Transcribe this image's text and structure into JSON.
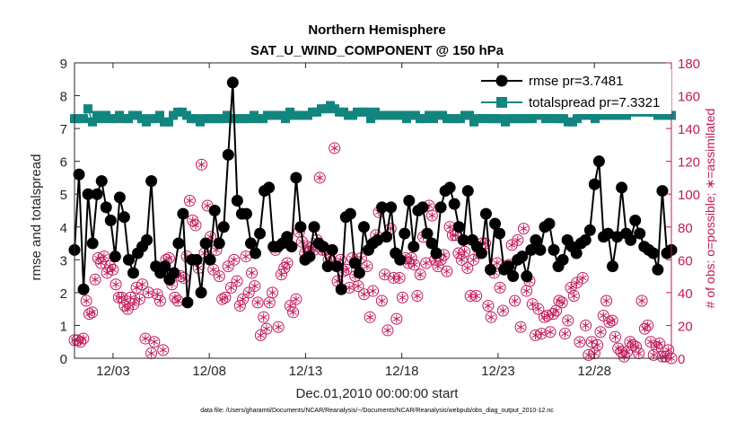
{
  "chart_data": {
    "type": "line",
    "title": "Northern Hemisphere",
    "subtitle": "SAT_U_WIND_COMPONENT @ 150 hPa",
    "xlabel": "Dec.01,2010 00:00:00 start",
    "ylabel": "rmse and totalspread",
    "ylabel_right": "# of obs: o=possible; ∗=assimilated",
    "xlim": [
      1,
      32
    ],
    "ylim": [
      0,
      9
    ],
    "ylim_right": [
      0,
      180
    ],
    "x_ticks": [
      3,
      8,
      13,
      18,
      23,
      28
    ],
    "x_tick_labels": [
      "12/03",
      "12/08",
      "12/13",
      "12/18",
      "12/23",
      "12/28"
    ],
    "y_ticks": [
      0,
      1,
      2,
      3,
      4,
      5,
      6,
      7,
      8,
      9
    ],
    "y_right_ticks": [
      0,
      20,
      40,
      60,
      80,
      100,
      120,
      140,
      160,
      180
    ],
    "footnote": "data file: /Users/gharamti/Documents/NCAR/Reanalysis/~/Documents/NCAR/Reanalysis/webpub/obs_diag_output_2010-12.nc",
    "series": [
      {
        "name": "rmse pr=3.7481",
        "color": "#000000",
        "marker": "circle",
        "values": [
          3.3,
          5.6,
          2.1,
          5.0,
          3.5,
          5.0,
          5.4,
          4.6,
          4.2,
          3.1,
          4.9,
          4.3,
          3.0,
          2.6,
          3.2,
          3.4,
          3.6,
          5.4,
          2.8,
          2.6,
          2.8,
          2.4,
          2.6,
          3.5,
          4.4,
          1.7,
          3.0,
          3.0,
          2.0,
          3.5,
          3.0,
          4.5,
          3.5,
          4.0,
          6.2,
          8.4,
          4.8,
          4.4,
          4.4,
          3.5,
          3.2,
          3.8,
          5.1,
          5.2,
          3.4,
          3.4,
          3.5,
          3.7,
          3.4,
          5.5,
          4.0,
          3.0,
          3.1,
          4.0,
          3.5,
          3.4,
          2.8,
          3.3,
          2.8,
          2.1,
          4.3,
          4.4,
          2.9,
          2.6,
          4.0,
          3.3,
          3.5,
          3.6,
          4.6,
          3.7,
          4.6,
          3.2,
          3.0,
          3.8,
          4.8,
          3.4,
          4.5,
          4.6,
          3.8,
          3.5,
          3.2,
          4.6,
          5.1,
          5.2,
          4.7,
          4.0,
          3.6,
          5.1,
          3.6,
          3.4,
          3.2,
          4.4,
          2.7,
          4.1,
          3.8,
          2.7,
          2.8,
          2.5,
          3.0,
          3.1,
          2.5,
          3.3,
          3.6,
          3.3,
          4.0,
          4.1,
          3.3,
          2.8,
          3.0,
          3.6,
          3.4,
          3.2,
          3.5,
          3.6,
          3.9,
          5.3,
          6.0,
          3.7,
          3.8,
          2.8,
          3.7,
          5.2,
          3.8,
          3.6,
          4.2,
          3.8,
          3.4,
          3.3,
          3.2,
          2.7,
          5.1,
          3.2,
          3.3
        ]
      },
      {
        "name": "totalspread pr=7.3321",
        "color": "#13857f",
        "marker": "square",
        "values": [
          7.3,
          7.3,
          7.3,
          7.6,
          7.2,
          7.4,
          7.3,
          7.4,
          7.3,
          7.3,
          7.4,
          7.3,
          7.3,
          7.4,
          7.4,
          7.3,
          7.2,
          7.3,
          7.3,
          7.4,
          7.2,
          7.2,
          7.4,
          7.5,
          7.5,
          7.4,
          7.3,
          7.3,
          7.2,
          7.3,
          7.3,
          7.3,
          7.3,
          7.3,
          7.4,
          7.3,
          7.3,
          7.3,
          7.3,
          7.3,
          7.4,
          7.3,
          7.3,
          7.4,
          7.4,
          7.4,
          7.4,
          7.3,
          7.5,
          7.4,
          7.4,
          7.4,
          7.4,
          7.5,
          7.5,
          7.6,
          7.6,
          7.7,
          7.6,
          7.5,
          7.5,
          7.4,
          7.4,
          7.5,
          7.5,
          7.5,
          7.3,
          7.5,
          7.4,
          7.4,
          7.4,
          7.4,
          7.4,
          7.4,
          7.3,
          7.4,
          7.4,
          7.3,
          7.3,
          7.4,
          7.3,
          7.4,
          7.4,
          7.3,
          7.3,
          7.3,
          7.3,
          7.4,
          7.4,
          7.2,
          7.3,
          7.4,
          7.3,
          7.3,
          7.3,
          7.3,
          7.2,
          7.3,
          7.3,
          7.3,
          7.3,
          7.3,
          7.3,
          7.4,
          7.4,
          7.3,
          7.4,
          7.3,
          7.3,
          7.3,
          7.2,
          7.2,
          7.3,
          7.4,
          7.4,
          7.4,
          7.3,
          7.4,
          7.4,
          7.5,
          7.4,
          7.4,
          7.5,
          7.4,
          7.5,
          7.8,
          7.5,
          7.6,
          7.5,
          7.5,
          7.4,
          7.4,
          7.4,
          7.4
        ]
      },
      {
        "name": "# of obs",
        "axis": "right",
        "color": "#c2185b",
        "marker": "circle-star",
        "values": [
          11,
          11,
          10,
          12,
          35,
          27,
          28,
          48,
          61,
          58,
          62,
          52,
          56,
          54,
          45,
          37,
          37,
          32,
          30,
          37,
          33,
          43,
          36,
          45,
          12,
          40,
          3,
          10,
          39,
          35,
          5,
          60,
          61,
          45,
          37,
          35,
          50,
          49,
          62,
          96,
          84,
          81,
          55,
          118,
          64,
          93,
          74,
          54,
          66,
          50,
          36,
          37,
          56,
          43,
          60,
          47,
          32,
          36,
          62,
          40,
          52,
          44,
          34,
          14,
          25,
          18,
          34,
          40,
          66,
          19,
          51,
          55,
          58,
          32,
          28,
          36,
          77,
          71,
          64,
          68,
          67,
          66,
          72,
          110,
          66,
          66,
          60,
          59,
          128,
          47,
          60,
          53,
          54,
          43,
          61,
          50,
          44,
          61,
          39,
          56,
          25,
          41,
          75,
          89,
          35,
          51,
          17,
          79,
          49,
          24,
          49,
          37,
          61,
          58,
          61,
          57,
          38,
          51,
          74,
          58,
          93,
          87,
          60,
          56,
          60,
          63,
          53,
          80,
          75,
          75,
          64,
          60,
          65,
          55,
          38,
          60,
          38,
          64,
          70,
          70,
          32,
          25,
          52,
          58,
          43,
          29,
          56,
          57,
          69,
          35,
          72,
          19,
          79,
          41,
          47,
          33,
          14,
          30,
          15,
          25,
          26,
          16,
          27,
          29,
          35,
          34,
          15,
          23,
          43,
          38,
          46,
          10,
          49,
          20,
          2,
          10,
          3,
          8,
          16,
          26,
          35,
          22,
          23,
          13,
          6,
          4,
          1,
          4,
          10,
          8,
          7,
          3,
          35,
          18,
          20,
          10,
          2,
          7,
          9,
          1,
          1,
          5,
          0
        ]
      }
    ]
  }
}
